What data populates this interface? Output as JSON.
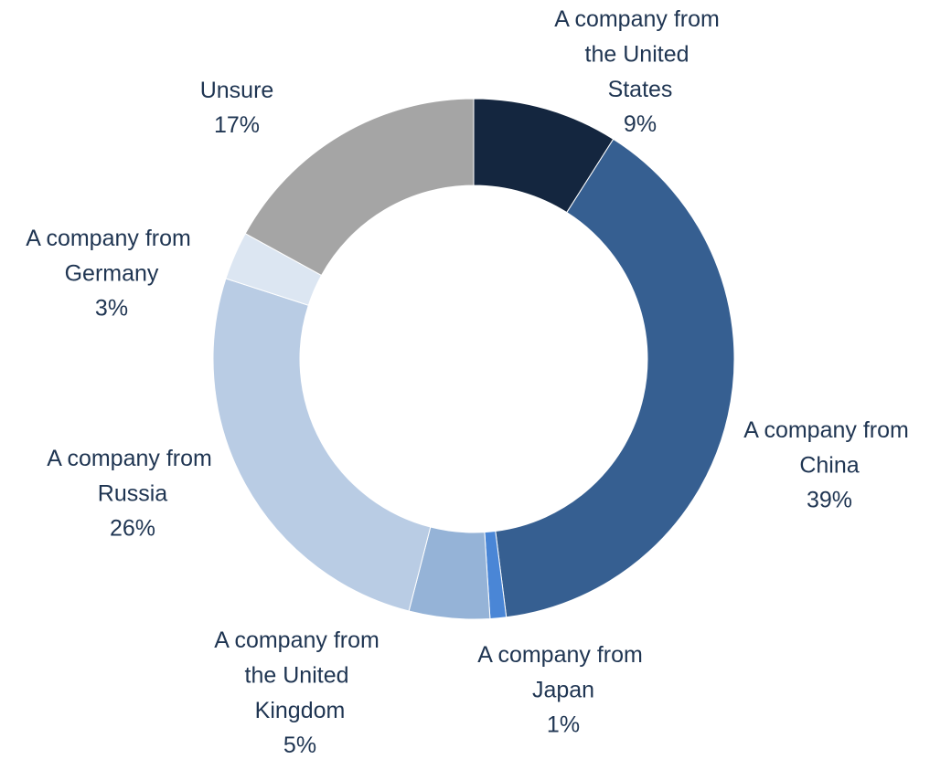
{
  "chart_data": {
    "type": "donut",
    "categories": [
      "A company from the United States",
      "A company from China",
      "A company from Japan",
      "A company from the United Kingdom",
      "A company from Russia",
      "A company from Germany",
      "Unsure"
    ],
    "values": [
      9,
      39,
      1,
      5,
      26,
      3,
      17
    ],
    "value_labels": [
      "9%",
      "39%",
      "1%",
      "5%",
      "26%",
      "3%",
      "17%"
    ],
    "colors": [
      "#14263f",
      "#365f91",
      "#4a86d6",
      "#95b3d7",
      "#b9cce4",
      "#dce6f2",
      "#a5a5a5"
    ]
  }
}
